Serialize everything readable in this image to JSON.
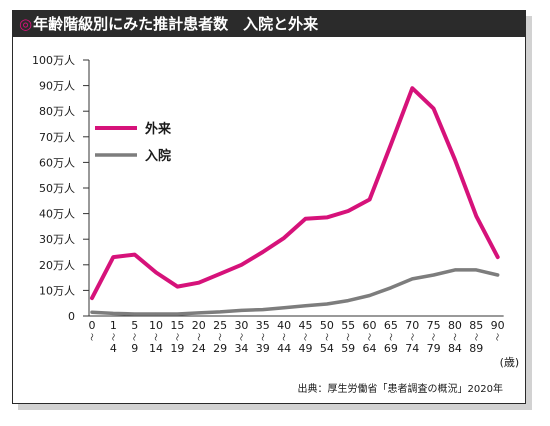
{
  "title": {
    "mark": "◎",
    "text": "年齢階級別にみた推計患者数　入院と外来"
  },
  "source": "出典：厚生労働省「患者調査の概況」2020年",
  "colors": {
    "outpatient": "#d6127a",
    "inpatient": "#7d7d7d",
    "axis": "#333333",
    "grid": "#c9c9c9"
  },
  "chart_data": {
    "type": "line",
    "title": "年齢階級別にみた推計患者数　入院と外来",
    "xlabel": "(歳)",
    "ylabel": "",
    "ylim": [
      0,
      100
    ],
    "y_unit": "万人",
    "y_ticks": [
      "0",
      "10万人",
      "20万人",
      "30万人",
      "40万人",
      "50万人",
      "60万人",
      "70万人",
      "80万人",
      "90万人",
      "100万人"
    ],
    "categories": [
      "0〜4",
      "1〜4",
      "5〜9",
      "10〜14",
      "15〜19",
      "20〜24",
      "25〜29",
      "30〜34",
      "35〜39",
      "40〜44",
      "45〜49",
      "50〜54",
      "55〜59",
      "60〜64",
      "65〜69",
      "70〜74",
      "75〜79",
      "80〜84",
      "85〜89",
      "90〜"
    ],
    "x_tick_top": [
      "0",
      "1",
      "5",
      "10",
      "15",
      "20",
      "25",
      "30",
      "35",
      "40",
      "45",
      "50",
      "55",
      "60",
      "65",
      "70",
      "75",
      "80",
      "85",
      "90"
    ],
    "x_tick_bottom": [
      "",
      "4",
      "9",
      "14",
      "19",
      "24",
      "29",
      "34",
      "39",
      "44",
      "49",
      "54",
      "59",
      "64",
      "69",
      "74",
      "79",
      "84",
      "89",
      ""
    ],
    "x_tick_sep": "〜",
    "grid": false,
    "legend_position": "top-left",
    "series": [
      {
        "name": "外来",
        "color": "#d6127a",
        "values": [
          7,
          23,
          24,
          17,
          11.5,
          13,
          16.5,
          20,
          25,
          30.5,
          38,
          38.5,
          41,
          45.5,
          67,
          89,
          81,
          61,
          39,
          23
        ]
      },
      {
        "name": "入院",
        "color": "#7d7d7d",
        "values": [
          1.5,
          1,
          0.8,
          0.8,
          0.8,
          1.2,
          1.6,
          2.2,
          2.5,
          3.2,
          4,
          4.7,
          6,
          8,
          11,
          14.5,
          16,
          18,
          18,
          16
        ]
      }
    ]
  }
}
